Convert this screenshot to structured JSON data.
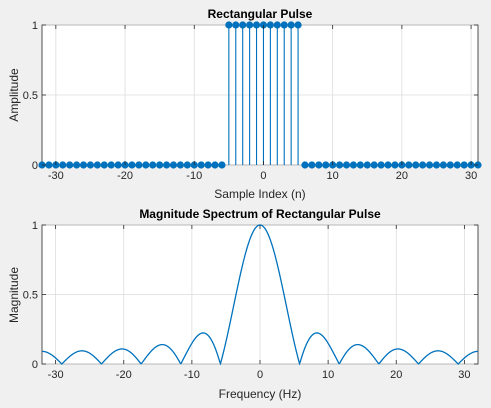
{
  "chart_data": [
    {
      "type": "stem",
      "title": "Rectangular Pulse",
      "xlabel": "Sample Index (n)",
      "ylabel": "Amplitude",
      "xlim": [
        -32,
        31
      ],
      "ylim": [
        0,
        1
      ],
      "xticks": [
        -30,
        -20,
        -10,
        0,
        10,
        20,
        30
      ],
      "yticks": [
        0,
        0.5,
        1
      ],
      "x": [
        -32,
        -31,
        -30,
        -29,
        -28,
        -27,
        -26,
        -25,
        -24,
        -23,
        -22,
        -21,
        -20,
        -19,
        -18,
        -17,
        -16,
        -15,
        -14,
        -13,
        -12,
        -11,
        -10,
        -9,
        -8,
        -7,
        -6,
        -5,
        -4,
        -3,
        -2,
        -1,
        0,
        1,
        2,
        3,
        4,
        5,
        6,
        7,
        8,
        9,
        10,
        11,
        12,
        13,
        14,
        15,
        16,
        17,
        18,
        19,
        20,
        21,
        22,
        23,
        24,
        25,
        26,
        27,
        28,
        29,
        30,
        31
      ],
      "y": [
        0,
        0,
        0,
        0,
        0,
        0,
        0,
        0,
        0,
        0,
        0,
        0,
        0,
        0,
        0,
        0,
        0,
        0,
        0,
        0,
        0,
        0,
        0,
        0,
        0,
        0,
        0,
        1,
        1,
        1,
        1,
        1,
        1,
        1,
        1,
        1,
        1,
        1,
        0,
        0,
        0,
        0,
        0,
        0,
        0,
        0,
        0,
        0,
        0,
        0,
        0,
        0,
        0,
        0,
        0,
        0,
        0,
        0,
        0,
        0,
        0,
        0,
        0,
        0
      ],
      "grid": true,
      "color": "#0072BD"
    },
    {
      "type": "line",
      "title": "Magnitude Spectrum of Rectangular Pulse",
      "xlabel": "Frequency (Hz)",
      "ylabel": "Magnitude",
      "xlim": [
        -32,
        32
      ],
      "ylim": [
        0,
        1
      ],
      "xticks": [
        -30,
        -20,
        -10,
        0,
        10,
        20,
        30
      ],
      "yticks": [
        0,
        0.5,
        1
      ],
      "function": "|sin(11*pi*f/64) / (11*sin(pi*f/64))|",
      "x_samples": [
        -32,
        -30,
        -28,
        -26,
        -24,
        -22,
        -20,
        -18,
        -16,
        -14,
        -12,
        -10,
        -8,
        -6,
        -4,
        -2,
        0,
        2,
        4,
        6,
        8,
        10,
        12,
        14,
        16,
        18,
        20,
        22,
        24,
        26,
        28,
        30,
        32
      ],
      "y_samples": [
        0.091,
        0.031,
        0.055,
        0.091,
        0.067,
        0.012,
        0.099,
        0.103,
        0.015,
        0.217,
        0.16,
        0.218,
        0.05,
        0.051,
        0.522,
        0.9,
        1.0,
        0.9,
        0.522,
        0.051,
        0.05,
        0.218,
        0.16,
        0.217,
        0.015,
        0.103,
        0.099,
        0.012,
        0.067,
        0.091,
        0.055,
        0.031,
        0.091
      ],
      "grid": true,
      "color": "#0072BD"
    }
  ]
}
